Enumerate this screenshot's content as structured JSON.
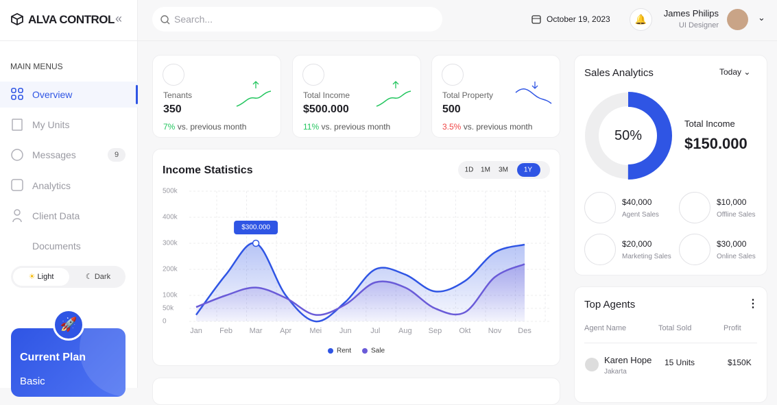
{
  "brand": "ALVA CONTROL",
  "sidebar": {
    "section": "MAIN MENUS",
    "menu": [
      {
        "label": "Overview"
      },
      {
        "label": "My Units"
      },
      {
        "label": "Messages",
        "badge": "9"
      },
      {
        "label": "Analytics"
      },
      {
        "label": "Client Data"
      },
      {
        "label": "Documents"
      }
    ],
    "theme": [
      "Light",
      "Dark"
    ],
    "plan": {
      "title": "Current Plan",
      "name": "Basic"
    }
  },
  "header": {
    "search": "Search...",
    "date": "October 19, 2023",
    "user": {
      "name": "James Philips",
      "role": "UI Designer"
    }
  },
  "stats": [
    {
      "label": "Tenants",
      "value": "350",
      "change": "7%",
      "note": "vs. previous month"
    },
    {
      "label": "Total Income",
      "value": "$500.000",
      "change": "11%",
      "note": "vs. previous month"
    },
    {
      "label": "Total Property",
      "value": "500",
      "change": "3.5%",
      "note": "vs. previous month"
    }
  ],
  "chart_data": {
    "type": "line",
    "title": "Income Statistics",
    "ranges": [
      "1D",
      "1M",
      "3M",
      "1Y"
    ],
    "categories": [
      "Jan",
      "Feb",
      "Mar",
      "Apr",
      "Mei",
      "Jun",
      "Jul",
      "Aug",
      "Sep",
      "Okt",
      "Nov",
      "Des"
    ],
    "series": [
      {
        "name": "Rent",
        "color": "#2f55e4",
        "values": [
          25000,
          180000,
          300000,
          100000,
          0,
          75000,
          200000,
          180000,
          115000,
          155000,
          265000,
          295000
        ]
      },
      {
        "name": "Sale",
        "color": "#6a5bd8",
        "values": [
          55000,
          100000,
          130000,
          90000,
          25000,
          65000,
          150000,
          130000,
          50000,
          35000,
          170000,
          220000
        ]
      }
    ],
    "annotation": "$300.000",
    "ylim": [
      0,
      500000
    ],
    "yticks": [
      0,
      {
        "value": 50000,
        "label": "50k"
      },
      {
        "value": 100000,
        "label": "100k"
      },
      {
        "value": 200000,
        "label": "200k"
      },
      {
        "value": 300000,
        "label": "300k"
      },
      {
        "value": 400000,
        "label": "400k"
      },
      {
        "value": 500000,
        "label": "500k"
      }
    ],
    "grid": true
  },
  "sales": {
    "title": "Sales Analytics",
    "period": "Today",
    "percent": {
      "value": 50,
      "label": "50%"
    },
    "total_label": "Total Income",
    "total": "$150.000",
    "items": [
      {
        "value": "$40,000",
        "label": "Agent Sales"
      },
      {
        "value": "$10,000",
        "label": "Offline Sales"
      },
      {
        "value": "$20,000",
        "label": "Marketing Sales"
      },
      {
        "value": "$30,000",
        "label": "Online Sales"
      }
    ]
  },
  "agents": {
    "title": "Top Agents",
    "columns": [
      "Agent Name",
      "Total Sold",
      "Profit"
    ],
    "rows": [
      {
        "name": "Karen Hope",
        "city": "Jakarta",
        "sold": "15 Units",
        "profit": "$150K"
      }
    ]
  }
}
